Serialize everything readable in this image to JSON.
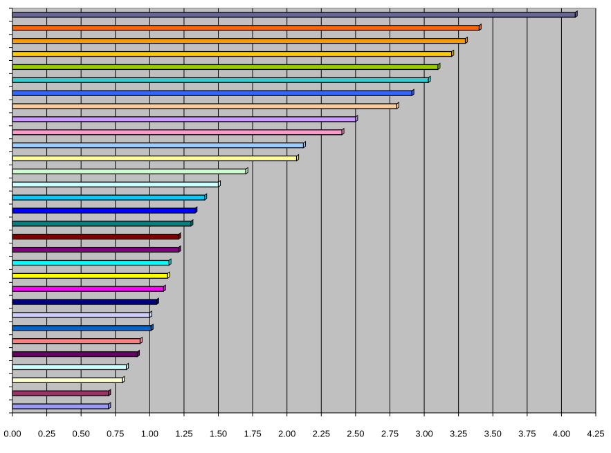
{
  "chart_data": {
    "type": "hbar",
    "categories": [
      null,
      null,
      null,
      null,
      null,
      null,
      null,
      null,
      null,
      null,
      null,
      null,
      null,
      null,
      null,
      null,
      null,
      null,
      null,
      null,
      null,
      null,
      null,
      null,
      null,
      null,
      null,
      null,
      null,
      null,
      null
    ],
    "values": [
      4.1,
      3.4,
      3.3,
      3.2,
      3.1,
      3.03,
      2.91,
      2.8,
      2.5,
      2.4,
      2.12,
      2.07,
      1.7,
      1.5,
      1.4,
      1.33,
      1.3,
      1.21,
      1.21,
      1.14,
      1.13,
      1.1,
      1.05,
      1.0,
      1.01,
      0.93,
      0.91,
      0.83,
      0.8,
      0.7,
      0.7
    ],
    "colors": [
      "#666699",
      "#FF6600",
      "#FF9900",
      "#FFCC00",
      "#99CC00",
      "#33CCCC",
      "#3366FF",
      "#FFCC99",
      "#CC99FF",
      "#FF99CC",
      "#99CCFF",
      "#FFFF99",
      "#CCFFCC",
      "#CCFFFF",
      "#00CCFF",
      "#0000FF",
      "#008080",
      "#800000",
      "#800080",
      "#00FFFF",
      "#FFFF00",
      "#FF00FF",
      "#000080",
      "#CCCCFF",
      "#0066CC",
      "#FF8080",
      "#660066",
      "#CCFFFF",
      "#FFFFCC",
      "#993366",
      "#9999FF"
    ],
    "xlim": [
      0,
      4.25
    ],
    "xticks": [
      {
        "value": 0,
        "label": "0.00"
      },
      {
        "value": 0.25,
        "label": "0.25"
      },
      {
        "value": 0.5,
        "label": "0.50"
      },
      {
        "value": 0.75,
        "label": "0.75"
      },
      {
        "value": 1,
        "label": "1.00"
      },
      {
        "value": 1.25,
        "label": "1.25"
      },
      {
        "value": 1.5,
        "label": "1.50"
      },
      {
        "value": 1.75,
        "label": "1.75"
      },
      {
        "value": 2,
        "label": "2.00"
      },
      {
        "value": 2.25,
        "label": "2.25"
      },
      {
        "value": 2.5,
        "label": "2.50"
      },
      {
        "value": 2.75,
        "label": "2.75"
      },
      {
        "value": 3,
        "label": "3.00"
      },
      {
        "value": 3.25,
        "label": "3.25"
      },
      {
        "value": 3.5,
        "label": "3.50"
      },
      {
        "value": 3.75,
        "label": "3.75"
      },
      {
        "value": 4,
        "label": "4.00"
      },
      {
        "value": 4.25,
        "label": "4.25"
      }
    ],
    "grid": true,
    "plot_background": "#C0C0C0"
  }
}
